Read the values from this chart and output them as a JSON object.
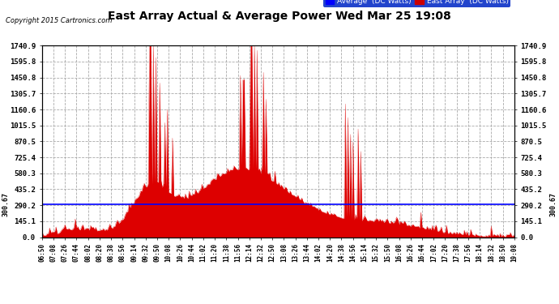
{
  "title": "East Array Actual & Average Power Wed Mar 25 19:08",
  "copyright": "Copyright 2015 Cartronics.com",
  "legend_labels": [
    "Average  (DC Watts)",
    "East Array  (DC Watts)"
  ],
  "legend_colors": [
    "#0000ff",
    "#cc0000"
  ],
  "avg_value": 300.67,
  "ymax": 1740.9,
  "yticks": [
    0.0,
    145.1,
    290.2,
    435.2,
    580.3,
    725.4,
    870.5,
    1015.5,
    1160.6,
    1305.7,
    1450.8,
    1595.8,
    1740.9
  ],
  "bg_color": "#ffffff",
  "plot_bg_color": "#ffffff",
  "grid_color": "#aaaaaa",
  "bar_color": "#dd0000",
  "avg_line_color": "#0000ff",
  "left_label_value": "300.67",
  "right_label_value": "300.67",
  "xtick_labels": [
    "06:50",
    "07:08",
    "07:26",
    "07:44",
    "08:02",
    "08:20",
    "08:38",
    "08:56",
    "09:14",
    "09:32",
    "09:50",
    "10:08",
    "10:26",
    "10:44",
    "11:02",
    "11:20",
    "11:38",
    "11:56",
    "12:14",
    "12:32",
    "12:50",
    "13:08",
    "13:26",
    "13:44",
    "14:02",
    "14:20",
    "14:38",
    "14:56",
    "15:14",
    "15:32",
    "15:50",
    "16:08",
    "16:26",
    "16:44",
    "17:02",
    "17:20",
    "17:38",
    "17:56",
    "18:14",
    "18:32",
    "18:50",
    "19:08"
  ]
}
